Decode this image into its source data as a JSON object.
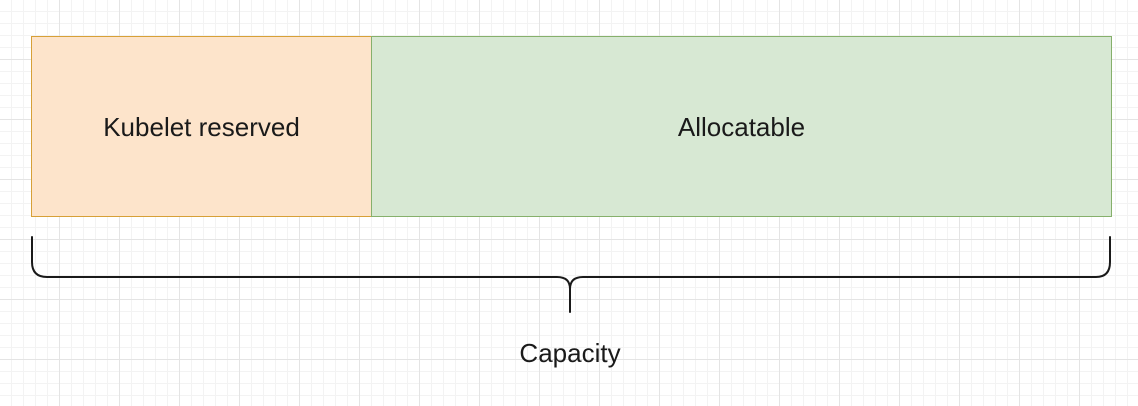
{
  "diagram": {
    "segments": [
      {
        "id": "reserved",
        "label": "Kubelet reserved",
        "fill": "#fde4cb",
        "stroke": "#d7a037"
      },
      {
        "id": "allocatable",
        "label": "Allocatable",
        "fill": "#d7e8d3",
        "stroke": "#86b06b"
      }
    ],
    "brace": {
      "label": "Capacity",
      "stroke": "#1a1a1a"
    },
    "grid": true
  }
}
